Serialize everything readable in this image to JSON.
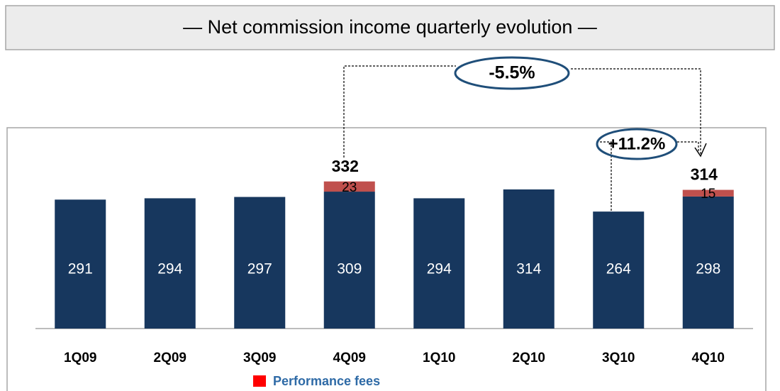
{
  "chart_data": {
    "type": "stacked-bar",
    "title": "— Net commission income quarterly evolution —",
    "categories": [
      "1Q09",
      "2Q09",
      "3Q09",
      "4Q09",
      "1Q10",
      "2Q10",
      "3Q10",
      "4Q10"
    ],
    "series": [
      {
        "color": "#17375e",
        "values": [
          291,
          294,
          297,
          309,
          294,
          314,
          264,
          298
        ]
      },
      {
        "name": "Performance fees",
        "color": "#c0504d",
        "values": [
          null,
          null,
          null,
          23,
          null,
          null,
          null,
          15
        ]
      }
    ],
    "total_labels": [
      null,
      null,
      null,
      "332",
      null,
      null,
      null,
      "314"
    ],
    "annotations": [
      "-5.5%",
      "+11.2%"
    ],
    "legend_color": "#ff0000",
    "ylim": [
      0,
      450
    ]
  }
}
